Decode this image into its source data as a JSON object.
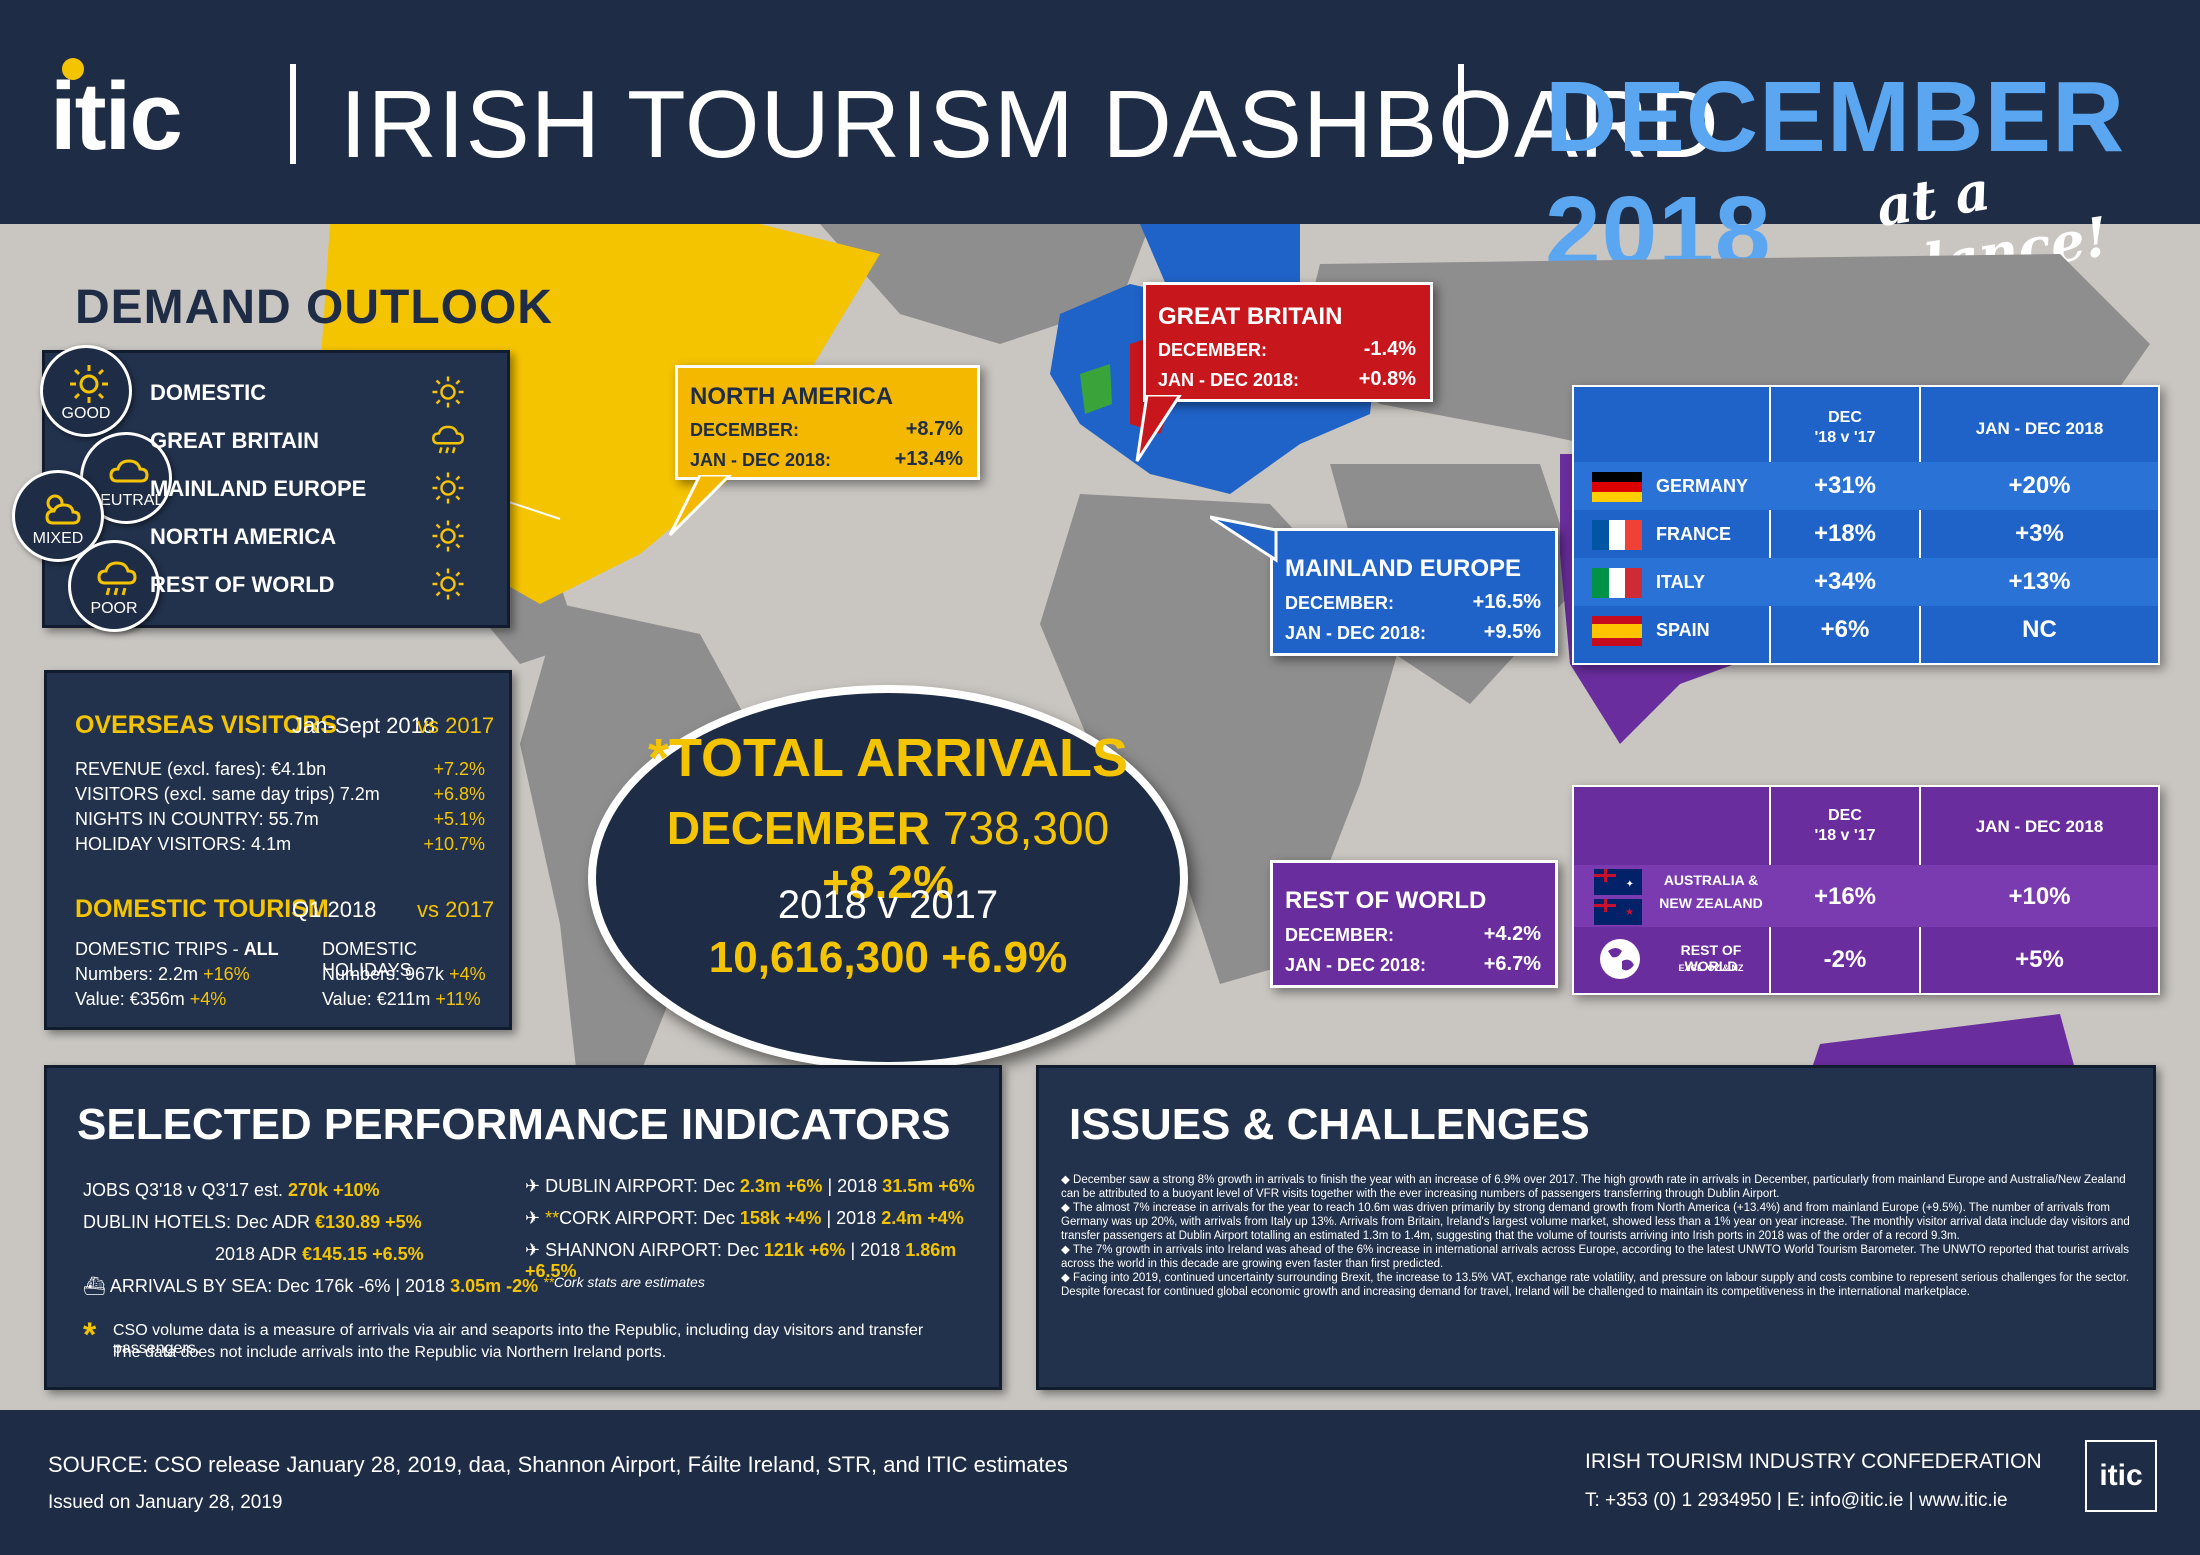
{
  "header": {
    "logo": "itic",
    "title": "IRISH TOURISM DASHBOARD",
    "month": "DECEMBER 2018",
    "tagline": "at a glance!"
  },
  "demand_outlook": {
    "title": "DEMAND OUTLOOK",
    "legend": [
      "GOOD",
      "NEUTRAL",
      "MIXED",
      "POOR"
    ],
    "items": [
      {
        "label": "DOMESTIC",
        "outlook": "good",
        "icon": "sun-icon"
      },
      {
        "label": "GREAT BRITAIN",
        "outlook": "poor",
        "icon": "rain-cloud-icon"
      },
      {
        "label": "MAINLAND EUROPE",
        "outlook": "good",
        "icon": "sun-icon"
      },
      {
        "label": "NORTH AMERICA",
        "outlook": "good",
        "icon": "sun-icon"
      },
      {
        "label": "REST OF WORLD",
        "outlook": "good",
        "icon": "sun-icon"
      }
    ]
  },
  "north_america": {
    "title": "NORTH AMERICA",
    "dec_label": "DECEMBER:",
    "dec": "+8.7%",
    "ytd_label": "JAN - DEC 2018:",
    "ytd": "+13.4%",
    "color": "#f5c400"
  },
  "great_britain": {
    "title": "GREAT BRITAIN",
    "dec_label": "DECEMBER:",
    "dec": "-1.4%",
    "ytd_label": "JAN - DEC 2018:",
    "ytd": "+0.8%",
    "color": "#c8161d"
  },
  "mainland_europe": {
    "title": "MAINLAND EUROPE",
    "dec_label": "DECEMBER:",
    "dec": "+16.5%",
    "ytd_label": "JAN - DEC 2018:",
    "ytd": "+9.5%",
    "color": "#1f63c9"
  },
  "rest_of_world": {
    "title": "REST OF WORLD",
    "dec_label": "DECEMBER:",
    "dec": "+4.2%",
    "ytd_label": "JAN - DEC 2018:",
    "ytd": "+6.7%",
    "color": "#6a2d9e"
  },
  "europe_table": {
    "col1_l1": "DEC",
    "col1_l2": "'18 v '17",
    "col2": "JAN - DEC 2018",
    "rows": [
      {
        "country": "GERMANY",
        "dec": "+31%",
        "ytd": "+20%",
        "flag": "germany-flag-icon"
      },
      {
        "country": "FRANCE",
        "dec": "+18%",
        "ytd": "+3%",
        "flag": "france-flag-icon"
      },
      {
        "country": "ITALY",
        "dec": "+34%",
        "ytd": "+13%",
        "flag": "italy-flag-icon"
      },
      {
        "country": "SPAIN",
        "dec": "+6%",
        "ytd": "NC",
        "flag": "spain-flag-icon"
      }
    ]
  },
  "row_table": {
    "col1_l1": "DEC",
    "col1_l2": "'18 v '17",
    "col2": "JAN - DEC 2018",
    "rows": [
      {
        "country_l1": "AUSTRALIA &",
        "country_l2": "NEW ZEALAND",
        "dec": "+16%",
        "ytd": "+10%"
      },
      {
        "country_l1": "REST OF WORLD",
        "country_l2": "EXCL. OZ & NZ",
        "dec": "-2%",
        "ytd": "+5%"
      }
    ]
  },
  "overseas": {
    "title": "OVERSEAS VISITORS",
    "period": "Jan-Sept 2018",
    "vs": "vs 2017",
    "rows": [
      {
        "label": "REVENUE (excl. fares): €4.1bn",
        "value": "+7.2%"
      },
      {
        "label": "VISITORS (excl. same day trips) 7.2m",
        "value": "+6.8%"
      },
      {
        "label": "NIGHTS IN COUNTRY: 55.7m",
        "value": "+5.1%"
      },
      {
        "label": "HOLIDAY VISITORS: 4.1m",
        "value": "+10.7%"
      }
    ]
  },
  "domestic": {
    "title": "DOMESTIC TOURISM",
    "period": "Q1 2018",
    "vs": "vs 2017",
    "trips_head_a": "DOMESTIC TRIPS - ",
    "trips_head_b": "ALL",
    "trips_num": "Numbers: 2.2m",
    "trips_num_chg": "+16%",
    "trips_val": "Value: €356m",
    "trips_val_chg": "+4%",
    "hol_head": "DOMESTIC HOLIDAYS",
    "hol_num": "Numbers: 967k",
    "hol_num_chg": "+4%",
    "hol_val": "Value: €211m",
    "hol_val_chg": "+11%"
  },
  "total": {
    "title": "*TOTAL ARRIVALS",
    "month": "DECEMBER",
    "dec_value": "738,300",
    "dec_change": "+8.2%",
    "year_label": "2018 v 2017",
    "year_value": "10,616,300",
    "year_change": "+6.9%"
  },
  "indicators": {
    "title": "SELECTED PERFORMANCE INDICATORS",
    "jobs": "JOBS Q3'18 v Q3'17 est.",
    "jobs_v": "270k +10%",
    "hotels": "DUBLIN HOTELS: Dec ADR",
    "hotels_v": "€130.89 +5%",
    "adr": "2018 ADR",
    "adr_v": "€145.15 +6.5%",
    "sea": "ARRIVALS BY SEA: Dec 176k -6% | 2018",
    "sea_v": "3.05m -2%",
    "dub": "DUBLIN AIRPORT: Dec",
    "dub_v1": "2.3m +6%",
    "dub_m": "| 2018",
    "dub_v2": "31.5m +6%",
    "cork_star": "**",
    "cork": "CORK AIRPORT: Dec",
    "cork_v1": "158k +4%",
    "cork_m": "| 2018",
    "cork_v2": "2.4m +4%",
    "shan": "SHANNON AIRPORT: Dec",
    "shan_v1": "121k +6%",
    "shan_m": "| 2018",
    "shan_v2": "1.86m +6.5%",
    "cork_note_star": "**",
    "cork_note": "Cork stats are estimates",
    "footnote_star": "*",
    "footnote_1": "CSO volume data is a measure of arrivals via air and seaports into the Republic, including day visitors and transfer passengers.",
    "footnote_2": "The data does not include arrivals into the Republic via Northern Ireland ports."
  },
  "issues": {
    "title": "ISSUES & CHALLENGES",
    "paragraphs": [
      "December saw a strong 8% growth in arrivals to finish the year with an increase of 6.9% over 2017. The high growth rate in arrivals in December, particularly from mainland Europe and Australia/New Zealand can be attributed to a buoyant level of VFR visits together with the ever increasing numbers of passengers transferring through Dublin Airport.",
      "The almost 7% increase in arrivals for the year to reach 10.6m was driven primarily by strong demand growth from North America (+13.4%) and from mainland Europe (+9.5%). The number of arrivals from Germany was up 20%, with arrivals from Italy up 13%. Arrivals from Britain, Ireland's largest volume market, showed less than a 1% year on year increase. The monthly visitor arrival data include day visitors and transfer passengers at Dublin Airport totalling an estimated 1.3m to 1.4m, suggesting that the volume of tourists arriving into Irish ports in 2018 was of the order of a record 9.3m.",
      "The 7% growth in arrivals into Ireland was ahead of the 6% increase in international arrivals across Europe, according to the latest UNWTO World Tourism Barometer. The UNWTO reported that tourist arrivals across the world in this decade are growing even faster than first predicted.",
      "Facing into 2019, continued uncertainty surrounding Brexit, the increase to 13.5% VAT, exchange rate volatility, and pressure on labour supply and costs combine to represent serious challenges for the sector. Despite forecast for continued global economic growth and increasing demand for travel, Ireland will be challenged to maintain its competitiveness in the international marketplace."
    ]
  },
  "footer": {
    "source": "SOURCE: CSO release January 28, 2019, daa, Shannon Airport, Fáilte Ireland, STR, and ITIC estimates",
    "issued": "Issued on January 28, 2019",
    "org": "IRISH TOURISM INDUSTRY CONFEDERATION",
    "contact": "T: +353 (0) 1 2934950 | E: info@itic.ie | www.itic.ie",
    "logo": "itic"
  },
  "colors": {
    "navy": "#1e2c45",
    "yellow": "#f5c400",
    "red": "#c8161d",
    "blue": "#1f63c9",
    "purple": "#6a2d9e",
    "sky": "#5aa6f0"
  }
}
